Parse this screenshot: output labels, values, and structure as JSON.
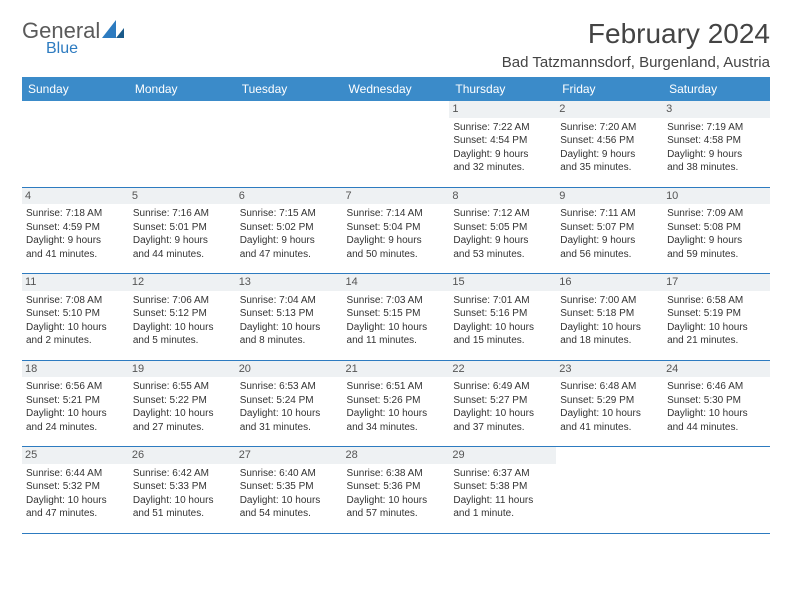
{
  "logo": {
    "text1": "General",
    "text2": "Blue"
  },
  "title": "February 2024",
  "location": "Bad Tatzmannsdorf, Burgenland, Austria",
  "colors": {
    "header_bg": "#3b8bc9",
    "header_text": "#ffffff",
    "accent": "#2d7bc0",
    "daynum_bg": "#eef1f3",
    "text": "#333333"
  },
  "typography": {
    "title_fontsize": 28,
    "location_fontsize": 15,
    "th_fontsize": 12,
    "cell_fontsize": 10
  },
  "day_headers": [
    "Sunday",
    "Monday",
    "Tuesday",
    "Wednesday",
    "Thursday",
    "Friday",
    "Saturday"
  ],
  "weeks": [
    [
      null,
      null,
      null,
      null,
      {
        "n": "1",
        "sr": "Sunrise: 7:22 AM",
        "ss": "Sunset: 4:54 PM",
        "d1": "Daylight: 9 hours",
        "d2": "and 32 minutes."
      },
      {
        "n": "2",
        "sr": "Sunrise: 7:20 AM",
        "ss": "Sunset: 4:56 PM",
        "d1": "Daylight: 9 hours",
        "d2": "and 35 minutes."
      },
      {
        "n": "3",
        "sr": "Sunrise: 7:19 AM",
        "ss": "Sunset: 4:58 PM",
        "d1": "Daylight: 9 hours",
        "d2": "and 38 minutes."
      }
    ],
    [
      {
        "n": "4",
        "sr": "Sunrise: 7:18 AM",
        "ss": "Sunset: 4:59 PM",
        "d1": "Daylight: 9 hours",
        "d2": "and 41 minutes."
      },
      {
        "n": "5",
        "sr": "Sunrise: 7:16 AM",
        "ss": "Sunset: 5:01 PM",
        "d1": "Daylight: 9 hours",
        "d2": "and 44 minutes."
      },
      {
        "n": "6",
        "sr": "Sunrise: 7:15 AM",
        "ss": "Sunset: 5:02 PM",
        "d1": "Daylight: 9 hours",
        "d2": "and 47 minutes."
      },
      {
        "n": "7",
        "sr": "Sunrise: 7:14 AM",
        "ss": "Sunset: 5:04 PM",
        "d1": "Daylight: 9 hours",
        "d2": "and 50 minutes."
      },
      {
        "n": "8",
        "sr": "Sunrise: 7:12 AM",
        "ss": "Sunset: 5:05 PM",
        "d1": "Daylight: 9 hours",
        "d2": "and 53 minutes."
      },
      {
        "n": "9",
        "sr": "Sunrise: 7:11 AM",
        "ss": "Sunset: 5:07 PM",
        "d1": "Daylight: 9 hours",
        "d2": "and 56 minutes."
      },
      {
        "n": "10",
        "sr": "Sunrise: 7:09 AM",
        "ss": "Sunset: 5:08 PM",
        "d1": "Daylight: 9 hours",
        "d2": "and 59 minutes."
      }
    ],
    [
      {
        "n": "11",
        "sr": "Sunrise: 7:08 AM",
        "ss": "Sunset: 5:10 PM",
        "d1": "Daylight: 10 hours",
        "d2": "and 2 minutes."
      },
      {
        "n": "12",
        "sr": "Sunrise: 7:06 AM",
        "ss": "Sunset: 5:12 PM",
        "d1": "Daylight: 10 hours",
        "d2": "and 5 minutes."
      },
      {
        "n": "13",
        "sr": "Sunrise: 7:04 AM",
        "ss": "Sunset: 5:13 PM",
        "d1": "Daylight: 10 hours",
        "d2": "and 8 minutes."
      },
      {
        "n": "14",
        "sr": "Sunrise: 7:03 AM",
        "ss": "Sunset: 5:15 PM",
        "d1": "Daylight: 10 hours",
        "d2": "and 11 minutes."
      },
      {
        "n": "15",
        "sr": "Sunrise: 7:01 AM",
        "ss": "Sunset: 5:16 PM",
        "d1": "Daylight: 10 hours",
        "d2": "and 15 minutes."
      },
      {
        "n": "16",
        "sr": "Sunrise: 7:00 AM",
        "ss": "Sunset: 5:18 PM",
        "d1": "Daylight: 10 hours",
        "d2": "and 18 minutes."
      },
      {
        "n": "17",
        "sr": "Sunrise: 6:58 AM",
        "ss": "Sunset: 5:19 PM",
        "d1": "Daylight: 10 hours",
        "d2": "and 21 minutes."
      }
    ],
    [
      {
        "n": "18",
        "sr": "Sunrise: 6:56 AM",
        "ss": "Sunset: 5:21 PM",
        "d1": "Daylight: 10 hours",
        "d2": "and 24 minutes."
      },
      {
        "n": "19",
        "sr": "Sunrise: 6:55 AM",
        "ss": "Sunset: 5:22 PM",
        "d1": "Daylight: 10 hours",
        "d2": "and 27 minutes."
      },
      {
        "n": "20",
        "sr": "Sunrise: 6:53 AM",
        "ss": "Sunset: 5:24 PM",
        "d1": "Daylight: 10 hours",
        "d2": "and 31 minutes."
      },
      {
        "n": "21",
        "sr": "Sunrise: 6:51 AM",
        "ss": "Sunset: 5:26 PM",
        "d1": "Daylight: 10 hours",
        "d2": "and 34 minutes."
      },
      {
        "n": "22",
        "sr": "Sunrise: 6:49 AM",
        "ss": "Sunset: 5:27 PM",
        "d1": "Daylight: 10 hours",
        "d2": "and 37 minutes."
      },
      {
        "n": "23",
        "sr": "Sunrise: 6:48 AM",
        "ss": "Sunset: 5:29 PM",
        "d1": "Daylight: 10 hours",
        "d2": "and 41 minutes."
      },
      {
        "n": "24",
        "sr": "Sunrise: 6:46 AM",
        "ss": "Sunset: 5:30 PM",
        "d1": "Daylight: 10 hours",
        "d2": "and 44 minutes."
      }
    ],
    [
      {
        "n": "25",
        "sr": "Sunrise: 6:44 AM",
        "ss": "Sunset: 5:32 PM",
        "d1": "Daylight: 10 hours",
        "d2": "and 47 minutes."
      },
      {
        "n": "26",
        "sr": "Sunrise: 6:42 AM",
        "ss": "Sunset: 5:33 PM",
        "d1": "Daylight: 10 hours",
        "d2": "and 51 minutes."
      },
      {
        "n": "27",
        "sr": "Sunrise: 6:40 AM",
        "ss": "Sunset: 5:35 PM",
        "d1": "Daylight: 10 hours",
        "d2": "and 54 minutes."
      },
      {
        "n": "28",
        "sr": "Sunrise: 6:38 AM",
        "ss": "Sunset: 5:36 PM",
        "d1": "Daylight: 10 hours",
        "d2": "and 57 minutes."
      },
      {
        "n": "29",
        "sr": "Sunrise: 6:37 AM",
        "ss": "Sunset: 5:38 PM",
        "d1": "Daylight: 11 hours",
        "d2": "and 1 minute."
      },
      null,
      null
    ]
  ]
}
